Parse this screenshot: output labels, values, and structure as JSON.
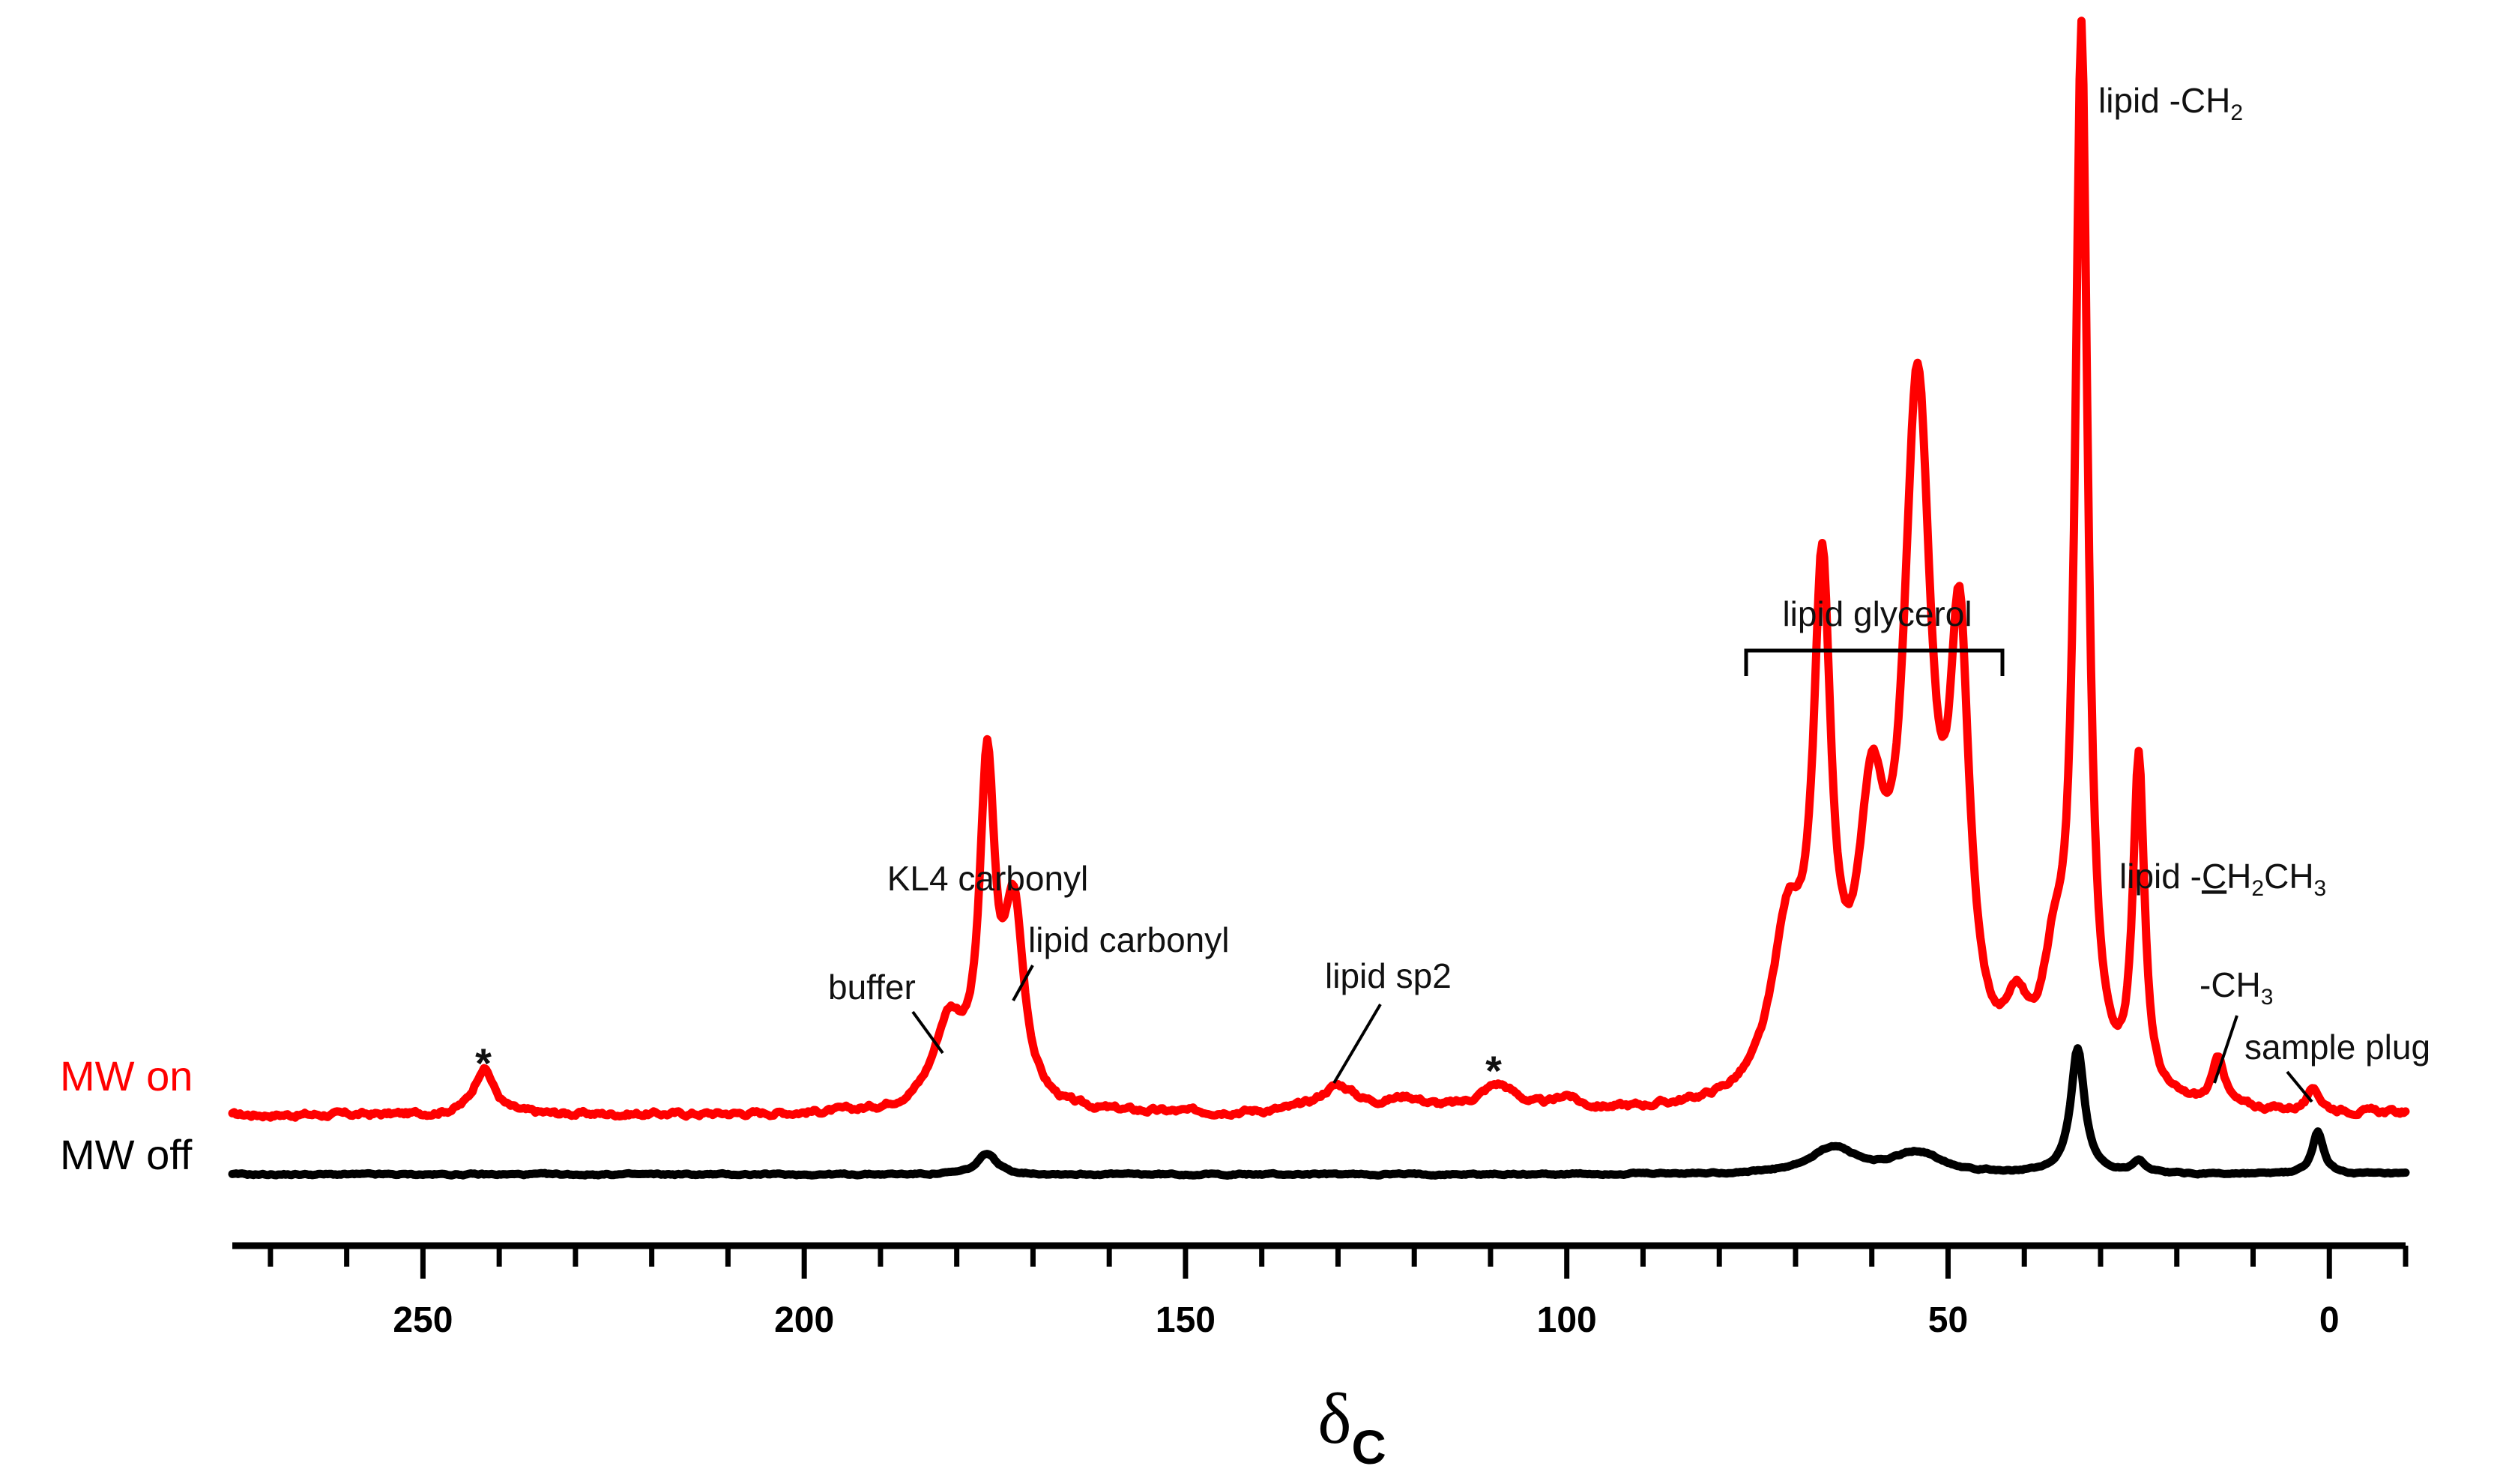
{
  "chart_data": {
    "type": "line",
    "title": "",
    "xlabel": "δ",
    "xlabel_sub": "C",
    "ylabel": "",
    "xlim": [
      275,
      -10
    ],
    "x_reversed": true,
    "x_ticks": [
      250,
      200,
      150,
      100,
      50,
      0
    ],
    "x_minor_step": 10,
    "series": [
      {
        "name": "MW on",
        "color": "#ff0000",
        "baseline": 0,
        "peaks": [
          {
            "pos": 242,
            "height": 0.045,
            "width": 1.6
          },
          {
            "pos": 181,
            "height": 0.08,
            "width": 2.5
          },
          {
            "pos": 176,
            "height": 0.31,
            "width": 1.2
          },
          {
            "pos": 172.5,
            "height": 0.18,
            "width": 1.6
          },
          {
            "pos": 130,
            "height": 0.025,
            "width": 3.0
          },
          {
            "pos": 121,
            "height": 0.012,
            "width": 3.0
          },
          {
            "pos": 109,
            "height": 0.025,
            "width": 3.0
          },
          {
            "pos": 100,
            "height": 0.012,
            "width": 1.5
          },
          {
            "pos": 71,
            "height": 0.15,
            "width": 2.6
          },
          {
            "pos": 66.5,
            "height": 0.46,
            "width": 1.4
          },
          {
            "pos": 60,
            "height": 0.23,
            "width": 2.2
          },
          {
            "pos": 54,
            "height": 0.65,
            "width": 2.2
          },
          {
            "pos": 48.5,
            "height": 0.39,
            "width": 1.6
          },
          {
            "pos": 41,
            "height": 0.06,
            "width": 1.8
          },
          {
            "pos": 36,
            "height": 0.1,
            "width": 2.0
          },
          {
            "pos": 32.5,
            "height": 1.0,
            "width": 1.0
          },
          {
            "pos": 25,
            "height": 0.32,
            "width": 0.9
          },
          {
            "pos": 14.5,
            "height": 0.045,
            "width": 1.0
          },
          {
            "pos": 2,
            "height": 0.02,
            "width": 1.0
          }
        ]
      },
      {
        "name": "MW off",
        "color": "#000000",
        "baseline": 0,
        "peaks": [
          {
            "pos": 176,
            "height": 0.02,
            "width": 1.5
          },
          {
            "pos": 65,
            "height": 0.025,
            "width": 3.5
          },
          {
            "pos": 54,
            "height": 0.02,
            "width": 4.0
          },
          {
            "pos": 33,
            "height": 0.12,
            "width": 1.1
          },
          {
            "pos": 25,
            "height": 0.012,
            "width": 1.0
          },
          {
            "pos": 1.5,
            "height": 0.04,
            "width": 0.9
          }
        ]
      }
    ],
    "annotations": [
      {
        "key": "lipid_ch2",
        "text": "lipid -CH",
        "sub": "2",
        "at": 32.5
      },
      {
        "key": "glycerol",
        "text": "lipid glycerol",
        "range": [
          76,
          43
        ]
      },
      {
        "key": "kl4",
        "text": "KL4 carbonyl",
        "at": 176
      },
      {
        "key": "lipid_carbonyl",
        "text": "lipid carbonyl",
        "at": 172.5
      },
      {
        "key": "buffer",
        "text": "buffer",
        "at": 181
      },
      {
        "key": "sp2",
        "text": "lipid sp2",
        "at": 130
      },
      {
        "key": "star1",
        "text": "*",
        "at": 242
      },
      {
        "key": "star2",
        "text": "*",
        "at": 109
      },
      {
        "key": "ch2ch3",
        "text_before": "lipid -",
        "text_underline": "C",
        "text_mid": "H",
        "sub1": "2",
        "text_after": "CH",
        "sub2": "3",
        "at": 25
      },
      {
        "key": "ch3",
        "text": "-CH",
        "sub": "3",
        "at": 14.5
      },
      {
        "key": "plug",
        "text": "sample plug",
        "at": 2
      }
    ]
  }
}
